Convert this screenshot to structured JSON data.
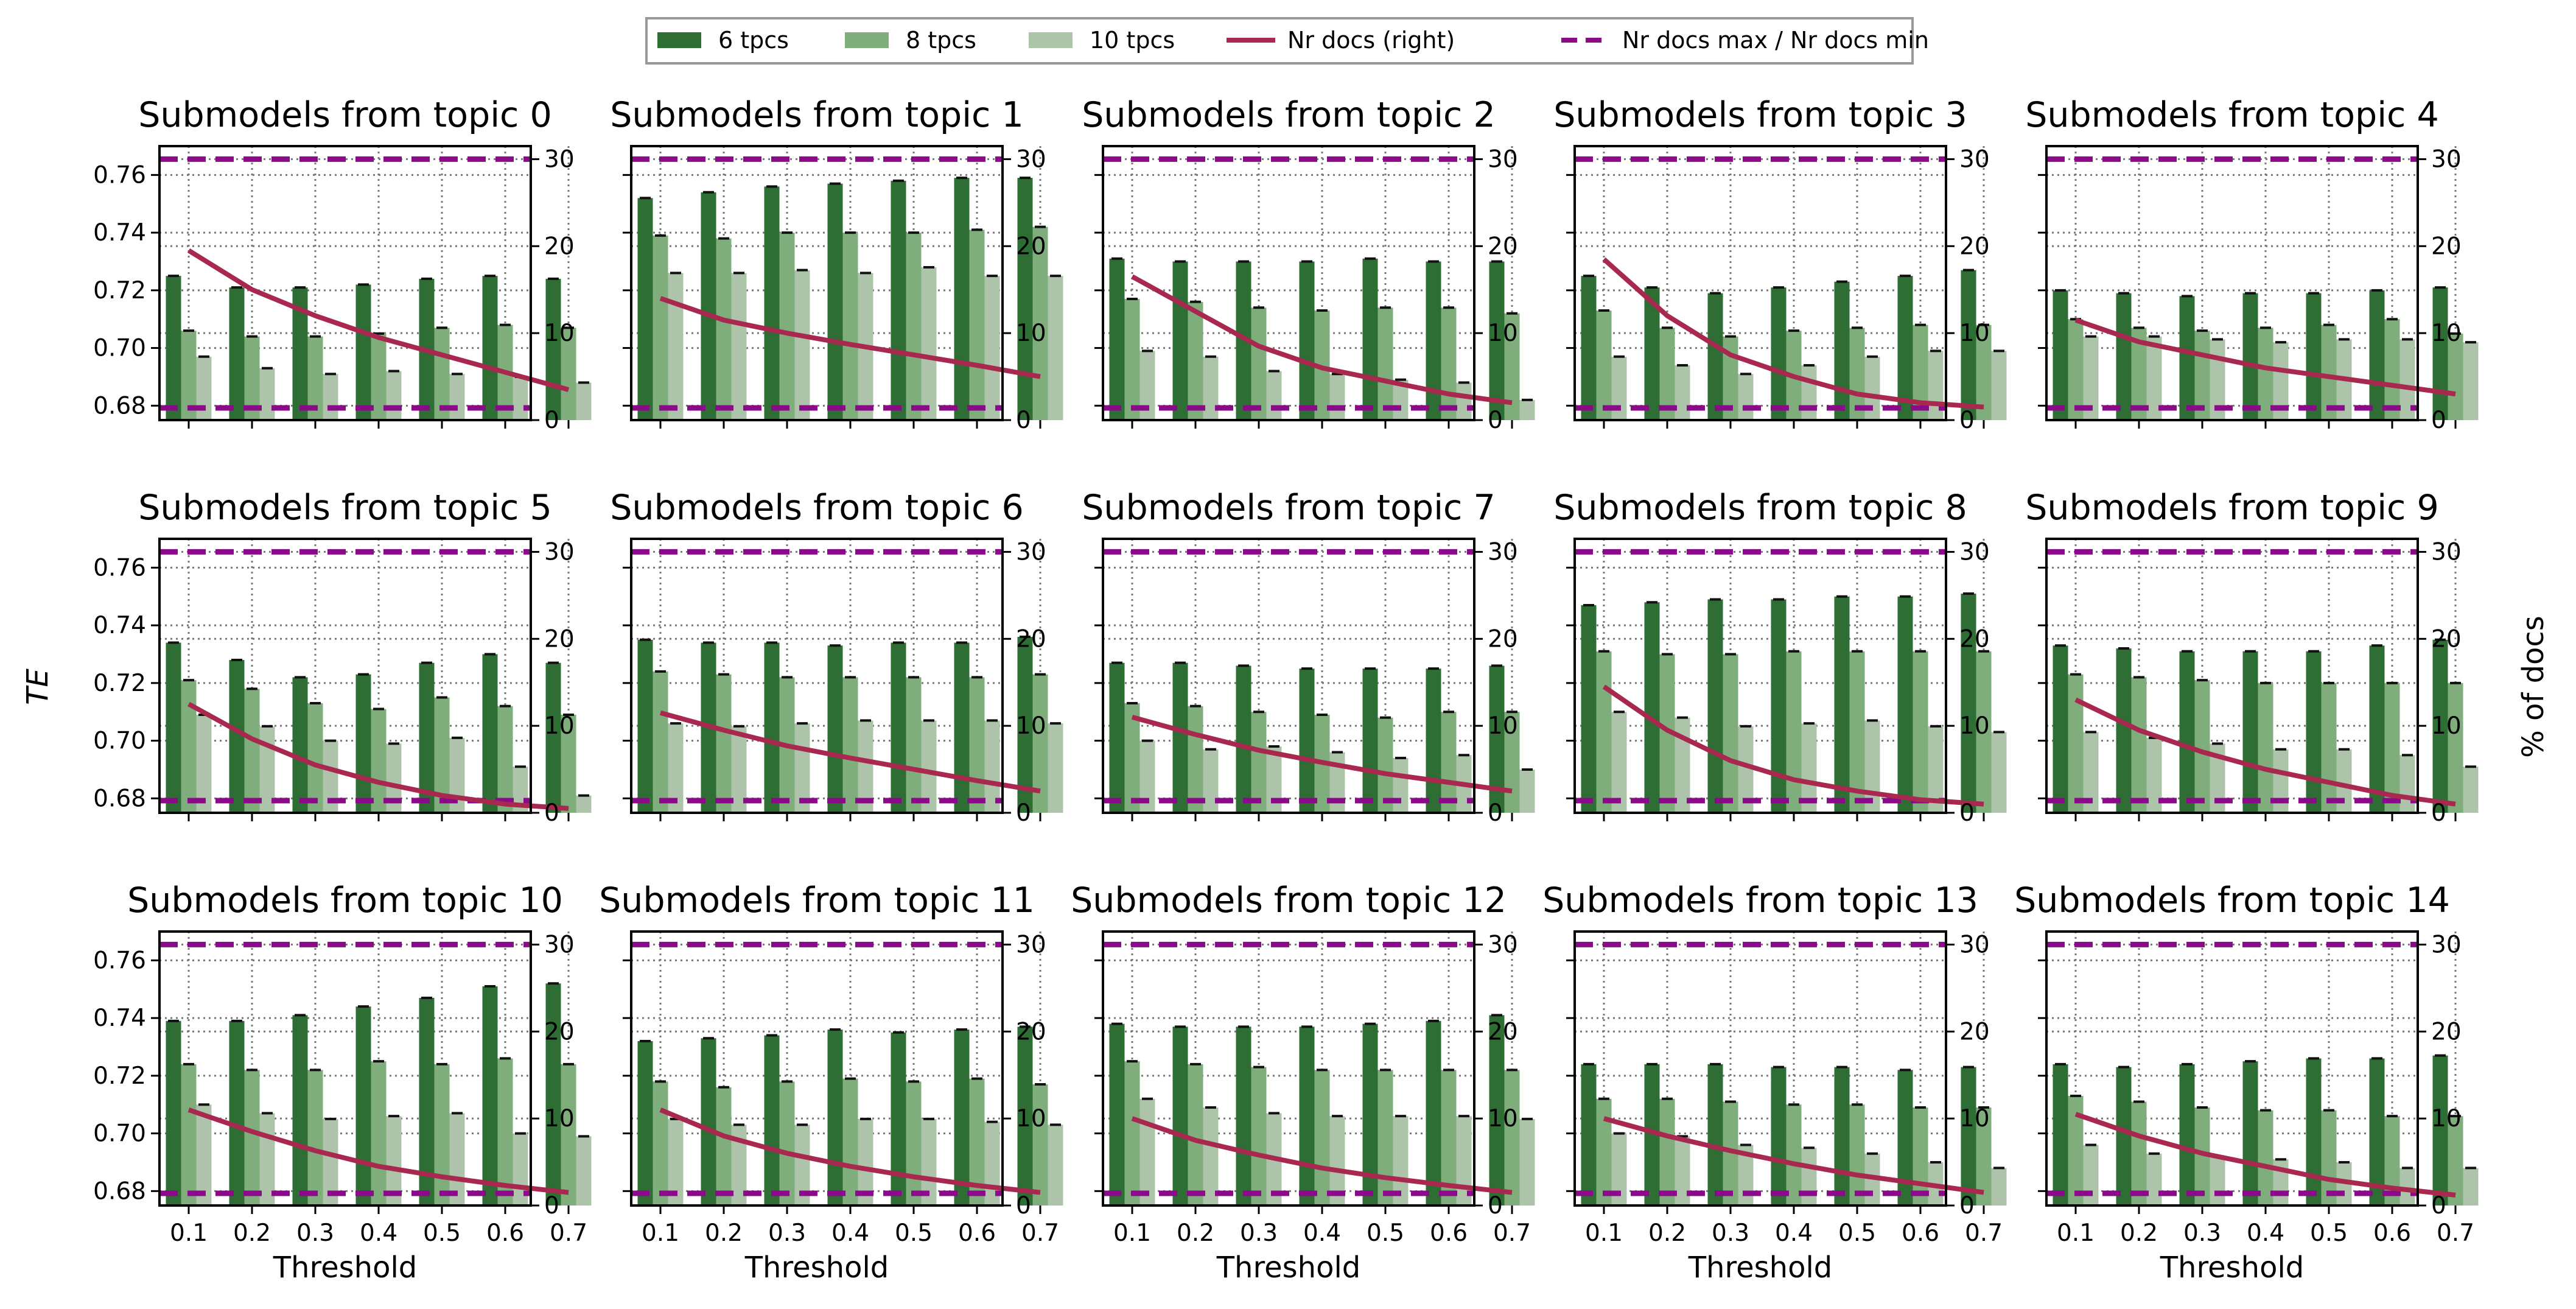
{
  "chart_data": {
    "type": "bar",
    "layout": "grid of 15 panels, 3 rows x 5 columns",
    "ylabel": "TE",
    "ylabel_right": "% of docs",
    "xlabel": "Threshold",
    "x_ticklabels": [
      "0.1",
      "0.2",
      "0.3",
      "0.4",
      "0.5",
      "0.6",
      "0.7"
    ],
    "ylim": [
      0.675,
      0.77
    ],
    "y_ticks": [
      0.68,
      0.7,
      0.72,
      0.74,
      0.76
    ],
    "y_ticklabels": [
      "0.68",
      "0.70",
      "0.72",
      "0.74",
      "0.76"
    ],
    "ylim_right": [
      0,
      31.5
    ],
    "y_ticks_right": [
      0,
      10,
      20,
      30
    ],
    "y_ticklabels_right": [
      "0",
      "10",
      "20",
      "30"
    ],
    "grid": "on, dotted",
    "legend": {
      "placement": "top-center",
      "entries": [
        "6 tpcs",
        "8 tpcs",
        "10 tpcs",
        "Nr docs (right)",
        "Nr docs max / Nr docs min"
      ]
    },
    "colors": {
      "6 tpcs": "#2e6e34",
      "8 tpcs": "#7fad7c",
      "10 tpcs": "#adc4aa",
      "nr_docs_line": "#a8284f",
      "max_min_line": "#8b0a8a"
    },
    "nr_docs_max": 30,
    "nr_docs_min": 1.4,
    "panels": [
      {
        "title": "Submodels from topic 0",
        "tpcs6": [
          0.725,
          0.721,
          0.721,
          0.722,
          0.724,
          0.725,
          0.724
        ],
        "tpcs8": [
          0.706,
          0.704,
          0.704,
          0.705,
          0.707,
          0.708,
          0.707
        ],
        "tpcs10": [
          0.697,
          0.693,
          0.691,
          0.692,
          0.691,
          0.69,
          0.688
        ],
        "nr_docs": [
          19.5,
          15.0,
          12.0,
          9.5,
          7.5,
          5.5,
          3.5
        ]
      },
      {
        "title": "Submodels from topic 1",
        "tpcs6": [
          0.752,
          0.754,
          0.756,
          0.757,
          0.758,
          0.759,
          0.759
        ],
        "tpcs8": [
          0.739,
          0.738,
          0.74,
          0.74,
          0.74,
          0.741,
          0.742
        ],
        "tpcs10": [
          0.726,
          0.726,
          0.727,
          0.726,
          0.728,
          0.725,
          0.725
        ],
        "nr_docs": [
          14.0,
          11.5,
          10.0,
          8.7,
          7.5,
          6.3,
          5.0
        ]
      },
      {
        "title": "Submodels from topic 2",
        "tpcs6": [
          0.731,
          0.73,
          0.73,
          0.73,
          0.731,
          0.73,
          0.73
        ],
        "tpcs8": [
          0.717,
          0.716,
          0.714,
          0.713,
          0.714,
          0.714,
          0.712
        ],
        "tpcs10": [
          0.699,
          0.697,
          0.692,
          0.691,
          0.689,
          0.688,
          0.682
        ],
        "nr_docs": [
          16.5,
          12.5,
          8.5,
          6.0,
          4.5,
          3.0,
          2.0
        ]
      },
      {
        "title": "Submodels from topic 3",
        "tpcs6": [
          0.725,
          0.721,
          0.719,
          0.721,
          0.723,
          0.725,
          0.727
        ],
        "tpcs8": [
          0.713,
          0.707,
          0.704,
          0.706,
          0.707,
          0.708,
          0.708
        ],
        "tpcs10": [
          0.697,
          0.694,
          0.691,
          0.694,
          0.697,
          0.699,
          0.699
        ],
        "nr_docs": [
          18.5,
          12.0,
          7.5,
          5.0,
          3.0,
          2.0,
          1.5
        ]
      },
      {
        "title": "Submodels from topic 4",
        "tpcs6": [
          0.72,
          0.719,
          0.718,
          0.719,
          0.719,
          0.72,
          0.721
        ],
        "tpcs8": [
          0.71,
          0.707,
          0.706,
          0.707,
          0.708,
          0.71,
          0.705
        ],
        "tpcs10": [
          0.704,
          0.704,
          0.703,
          0.702,
          0.703,
          0.703,
          0.702
        ],
        "nr_docs": [
          11.5,
          9.0,
          7.5,
          6.0,
          5.0,
          4.0,
          3.0
        ]
      },
      {
        "title": "Submodels from topic 5",
        "tpcs6": [
          0.734,
          0.728,
          0.722,
          0.723,
          0.727,
          0.73,
          0.727
        ],
        "tpcs8": [
          0.721,
          0.718,
          0.713,
          0.711,
          0.715,
          0.712,
          0.709
        ],
        "tpcs10": [
          0.709,
          0.705,
          0.7,
          0.699,
          0.701,
          0.691,
          0.681
        ],
        "nr_docs": [
          12.5,
          8.5,
          5.5,
          3.5,
          2.0,
          1.0,
          0.5
        ]
      },
      {
        "title": "Submodels from topic 6",
        "tpcs6": [
          0.735,
          0.734,
          0.734,
          0.733,
          0.734,
          0.734,
          0.736
        ],
        "tpcs8": [
          0.724,
          0.723,
          0.722,
          0.722,
          0.722,
          0.722,
          0.723
        ],
        "tpcs10": [
          0.706,
          0.705,
          0.706,
          0.707,
          0.707,
          0.707,
          0.706
        ],
        "nr_docs": [
          11.5,
          9.5,
          7.7,
          6.3,
          5.0,
          3.7,
          2.5
        ]
      },
      {
        "title": "Submodels from topic 7",
        "tpcs6": [
          0.727,
          0.727,
          0.726,
          0.725,
          0.725,
          0.725,
          0.726
        ],
        "tpcs8": [
          0.713,
          0.712,
          0.71,
          0.709,
          0.708,
          0.71,
          0.71
        ],
        "tpcs10": [
          0.7,
          0.697,
          0.698,
          0.696,
          0.694,
          0.695,
          0.69
        ],
        "nr_docs": [
          11.0,
          9.0,
          7.2,
          5.8,
          4.5,
          3.5,
          2.5
        ]
      },
      {
        "title": "Submodels from topic 8",
        "tpcs6": [
          0.747,
          0.748,
          0.749,
          0.749,
          0.75,
          0.75,
          0.751
        ],
        "tpcs8": [
          0.731,
          0.73,
          0.73,
          0.731,
          0.731,
          0.731,
          0.731
        ],
        "tpcs10": [
          0.71,
          0.708,
          0.705,
          0.706,
          0.707,
          0.705,
          0.703
        ],
        "nr_docs": [
          14.5,
          9.5,
          6.0,
          3.8,
          2.5,
          1.5,
          1.0
        ]
      },
      {
        "title": "Submodels from topic 9",
        "tpcs6": [
          0.733,
          0.732,
          0.731,
          0.731,
          0.731,
          0.733,
          0.735
        ],
        "tpcs8": [
          0.723,
          0.722,
          0.721,
          0.72,
          0.72,
          0.72,
          0.72
        ],
        "tpcs10": [
          0.703,
          0.701,
          0.699,
          0.697,
          0.697,
          0.695,
          0.691
        ],
        "nr_docs": [
          13.0,
          9.5,
          7.0,
          5.0,
          3.5,
          2.0,
          1.0
        ]
      },
      {
        "title": "Submodels from topic 10",
        "tpcs6": [
          0.739,
          0.739,
          0.741,
          0.744,
          0.747,
          0.751,
          0.752
        ],
        "tpcs8": [
          0.724,
          0.722,
          0.722,
          0.725,
          0.724,
          0.726,
          0.724
        ],
        "tpcs10": [
          0.71,
          0.707,
          0.705,
          0.706,
          0.707,
          0.7,
          0.699
        ],
        "nr_docs": [
          11.0,
          8.5,
          6.3,
          4.5,
          3.3,
          2.3,
          1.5
        ]
      },
      {
        "title": "Submodels from topic 11",
        "tpcs6": [
          0.732,
          0.733,
          0.734,
          0.736,
          0.735,
          0.736,
          0.737
        ],
        "tpcs8": [
          0.718,
          0.716,
          0.718,
          0.719,
          0.718,
          0.719,
          0.717
        ],
        "tpcs10": [
          0.705,
          0.703,
          0.703,
          0.705,
          0.705,
          0.704,
          0.703
        ],
        "nr_docs": [
          11.0,
          8.0,
          6.0,
          4.5,
          3.3,
          2.3,
          1.5
        ]
      },
      {
        "title": "Submodels from topic 12",
        "tpcs6": [
          0.738,
          0.737,
          0.737,
          0.737,
          0.738,
          0.739,
          0.741
        ],
        "tpcs8": [
          0.725,
          0.724,
          0.723,
          0.722,
          0.722,
          0.722,
          0.722
        ],
        "tpcs10": [
          0.712,
          0.709,
          0.707,
          0.706,
          0.706,
          0.706,
          0.705
        ],
        "nr_docs": [
          10.0,
          7.5,
          5.8,
          4.3,
          3.2,
          2.3,
          1.5
        ]
      },
      {
        "title": "Submodels from topic 13",
        "tpcs6": [
          0.724,
          0.724,
          0.724,
          0.723,
          0.723,
          0.722,
          0.723
        ],
        "tpcs8": [
          0.712,
          0.712,
          0.711,
          0.71,
          0.71,
          0.709,
          0.709
        ],
        "tpcs10": [
          0.7,
          0.699,
          0.696,
          0.695,
          0.693,
          0.69,
          0.688
        ],
        "nr_docs": [
          10.0,
          8.0,
          6.3,
          4.8,
          3.5,
          2.5,
          1.5
        ]
      },
      {
        "title": "Submodels from topic 14",
        "tpcs6": [
          0.724,
          0.723,
          0.724,
          0.725,
          0.726,
          0.726,
          0.727
        ],
        "tpcs8": [
          0.713,
          0.711,
          0.709,
          0.708,
          0.708,
          0.706,
          0.706
        ],
        "tpcs10": [
          0.696,
          0.693,
          0.692,
          0.691,
          0.69,
          0.688,
          0.688
        ],
        "nr_docs": [
          10.5,
          8.0,
          6.0,
          4.5,
          3.0,
          2.0,
          1.2
        ]
      }
    ]
  }
}
